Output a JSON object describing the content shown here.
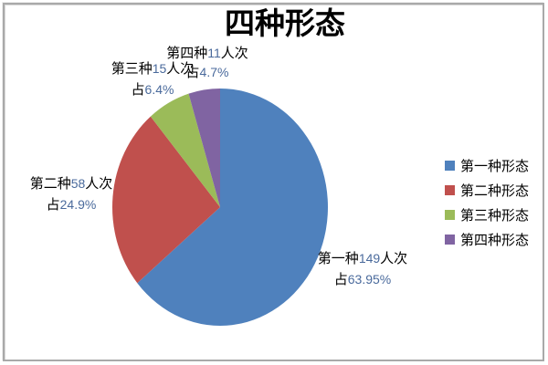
{
  "title": "四种形态",
  "chart_data": {
    "type": "pie",
    "title": "四种形态",
    "categories": [
      "第一种形态",
      "第二种形态",
      "第三种形态",
      "第四种形态"
    ],
    "values": [
      149,
      58,
      15,
      11
    ],
    "unit": "人次",
    "percent_labels": [
      "63.95%",
      "24.9%",
      "6.4%",
      "4.7%"
    ],
    "colors": [
      "#4f81bd",
      "#c0504d",
      "#9bbb59",
      "#8064a2"
    ],
    "start_angle_deg": 0,
    "direction": "clockwise",
    "legend_position": "right",
    "labels": [
      {
        "prefix": "第一种",
        "count": "149",
        "unit": "人次",
        "zhan": "占",
        "pct": "63.95%"
      },
      {
        "prefix": "第二种",
        "count": "58",
        "unit": "人次",
        "zhan": "占",
        "pct": "24.9%"
      },
      {
        "prefix": "第三种",
        "count": "15",
        "unit": "人次",
        "zhan": "占",
        "pct": "6.4%"
      },
      {
        "prefix": "第四种",
        "count": "11",
        "unit": "人次",
        "zhan": "占",
        "pct": "4.7%"
      }
    ]
  },
  "legend": {
    "items": [
      "第一种形态",
      "第二种形态",
      "第三种形态",
      "第四种形态"
    ]
  }
}
